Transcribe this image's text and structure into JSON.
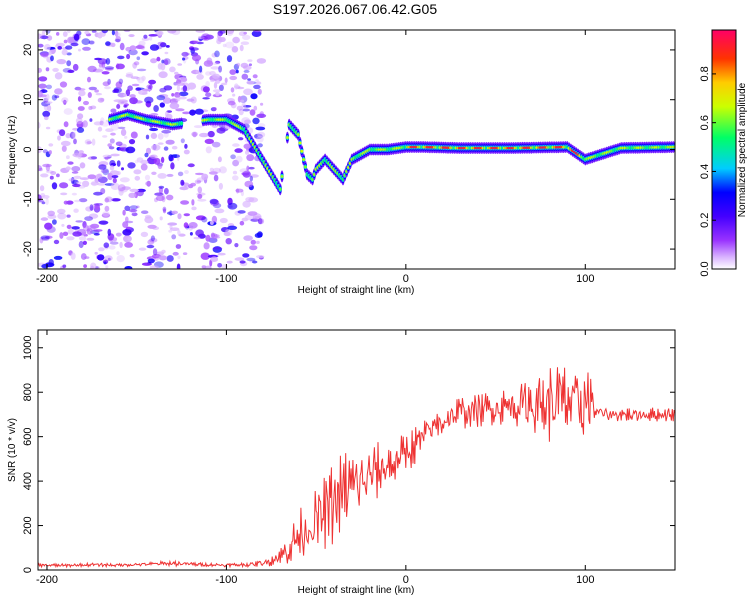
{
  "chart_data": [
    {
      "type": "heatmap",
      "title": "S197.2026.067.06.42.G05",
      "xlabel": "Height of straight line (km)",
      "ylabel": "Frequency (Hz)",
      "xlim": [
        -205,
        150
      ],
      "ylim": [
        -24,
        24
      ],
      "x_ticks": [
        -200,
        -100,
        0,
        100
      ],
      "y_ticks": [
        -20,
        -10,
        0,
        10,
        20
      ],
      "colorbar": {
        "label": "Normalized spectral amplitude",
        "range": [
          0,
          0.98
        ],
        "ticks": [
          0.0,
          0.2,
          0.4,
          0.6,
          0.8
        ],
        "tick_labels": [
          "0.0",
          "0.2",
          "0.4",
          "0.6",
          "0.8"
        ],
        "colors": [
          "#ffffff",
          "#cc99ff",
          "#7f00ff",
          "#0000ff",
          "#00ffff",
          "#00ff00",
          "#ffff00",
          "#ff8000",
          "#ff0000",
          "#ff0080"
        ]
      },
      "ridge": {
        "name": "main frequency trace",
        "x": [
          -165,
          -155,
          -145,
          -130,
          -110,
          -100,
          -90,
          -85,
          -80,
          -75,
          -70,
          -65,
          -60,
          -57,
          -55,
          -52,
          -50,
          -45,
          -40,
          -35,
          -30,
          -25,
          -20,
          -10,
          0,
          10,
          30,
          60,
          90,
          100,
          120,
          150
        ],
        "y": [
          6,
          7,
          6,
          5,
          6,
          6,
          4,
          1,
          -2,
          -5,
          -8,
          5,
          3,
          -2,
          -5,
          -6,
          -4,
          -2,
          -4,
          -6,
          -2,
          -1,
          0,
          0,
          0.5,
          0.5,
          0.3,
          0.3,
          0.5,
          -2,
          0.3,
          0.5
        ]
      }
    },
    {
      "type": "line",
      "xlabel": "Height of straight line (km)",
      "ylabel": "SNR (10 * v/v)",
      "xlim": [
        -205,
        150
      ],
      "ylim": [
        0,
        1080
      ],
      "x_ticks": [
        -200,
        -100,
        0,
        100
      ],
      "y_ticks": [
        0,
        200,
        400,
        600,
        800,
        1000
      ],
      "color": "#ee3333",
      "series": [
        {
          "name": "SNR",
          "x": [
            -205,
            -190,
            -175,
            -160,
            -145,
            -130,
            -115,
            -100,
            -85,
            -78,
            -70,
            -65,
            -60,
            -55,
            -50,
            -45,
            -40,
            -35,
            -30,
            -25,
            -20,
            -15,
            -10,
            -5,
            0,
            5,
            10,
            15,
            20,
            25,
            30,
            40,
            50,
            60,
            70,
            80,
            85,
            90,
            95,
            100,
            103,
            105,
            110,
            120,
            130,
            140,
            150
          ],
          "y": [
            22,
            20,
            24,
            22,
            26,
            30,
            25,
            22,
            25,
            35,
            60,
            100,
            150,
            190,
            220,
            260,
            300,
            340,
            380,
            390,
            420,
            450,
            470,
            490,
            530,
            560,
            600,
            640,
            670,
            690,
            710,
            720,
            730,
            740,
            750,
            750,
            760,
            760,
            740,
            750,
            760,
            720,
            700,
            700,
            700,
            700,
            700
          ],
          "amplitude": [
            6,
            6,
            6,
            6,
            6,
            10,
            6,
            6,
            8,
            15,
            30,
            60,
            90,
            100,
            110,
            130,
            150,
            160,
            140,
            120,
            110,
            100,
            90,
            80,
            70,
            70,
            60,
            60,
            60,
            60,
            60,
            60,
            60,
            70,
            100,
            140,
            150,
            130,
            120,
            150,
            170,
            40,
            25,
            25,
            25,
            25,
            25
          ]
        }
      ]
    }
  ]
}
